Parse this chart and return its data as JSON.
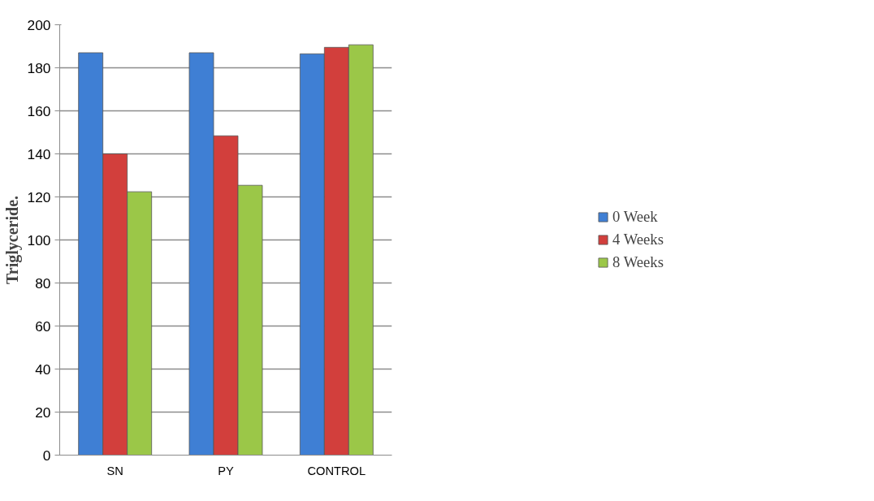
{
  "chart_data": {
    "type": "bar",
    "ylabel": "Triglyceride.",
    "categories": [
      "SN",
      "PY",
      "CONTROL"
    ],
    "series": [
      {
        "name": "0 Week",
        "color": "#3f7fd4",
        "values": [
          187,
          187,
          186.5
        ]
      },
      {
        "name": "4 Weeks",
        "color": "#d23f3c",
        "values": [
          140,
          148.4,
          189.5
        ]
      },
      {
        "name": "8 Weeks",
        "color": "#9bc748",
        "values": [
          122.4,
          125.4,
          190.7
        ]
      }
    ],
    "ylim": [
      0,
      200
    ],
    "yticks": [
      0,
      20,
      40,
      60,
      80,
      100,
      120,
      140,
      160,
      180,
      200
    ],
    "grid": "y",
    "legend": "right"
  }
}
